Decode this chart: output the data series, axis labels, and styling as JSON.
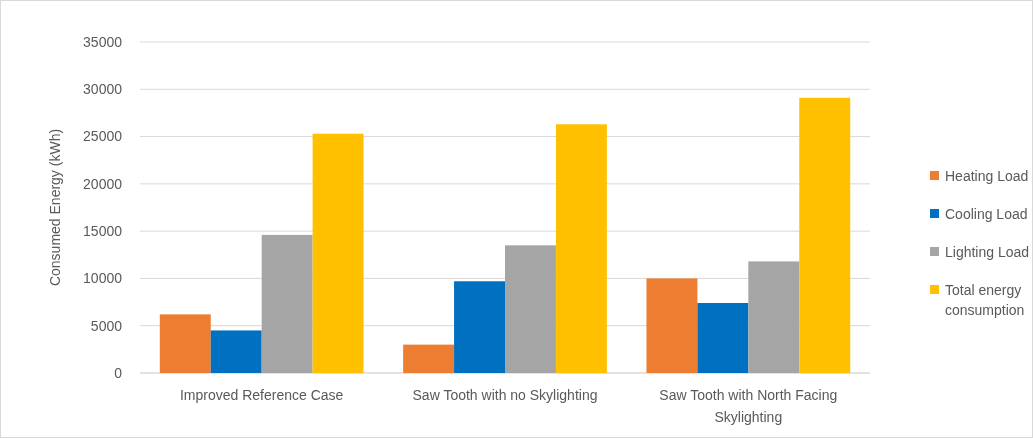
{
  "chart_data": {
    "type": "bar",
    "ylabel": "Consumed Energy (kWh)",
    "categories": [
      "Improved  Reference Case",
      "Saw Tooth with no Skylighting",
      "Saw Tooth with North Facing Skylighting"
    ],
    "series": [
      {
        "name": "Heating Load",
        "color": "#ed7d31",
        "values": [
          6200,
          3000,
          10000
        ]
      },
      {
        "name": "Cooling Load",
        "color": "#0070c0",
        "values": [
          4500,
          9700,
          7400
        ]
      },
      {
        "name": "Lighting Load",
        "color": "#a5a5a5",
        "values": [
          14600,
          13500,
          11800
        ]
      },
      {
        "name": "Total energy consumption",
        "color": "#ffc000",
        "values": [
          25300,
          26300,
          29100
        ]
      }
    ],
    "ylim": [
      0,
      35000
    ],
    "yticks": [
      0,
      5000,
      10000,
      15000,
      20000,
      25000,
      30000,
      35000
    ],
    "grid": "y",
    "legend": "right"
  }
}
